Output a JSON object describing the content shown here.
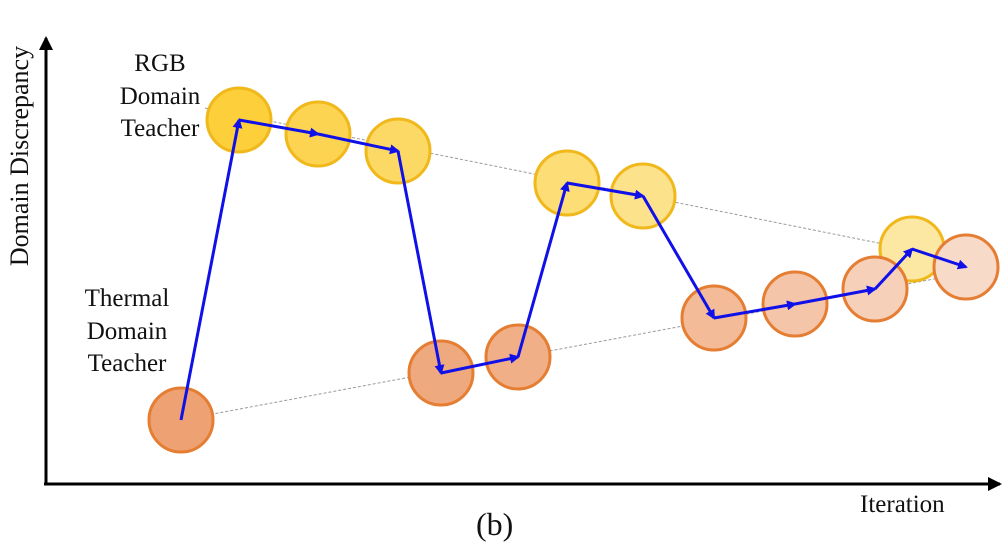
{
  "labels": {
    "y_axis": "Domain Discrepancy",
    "x_axis": "Iteration",
    "caption": "(b)",
    "rgb_teacher": [
      "RGB",
      "Domain",
      "Teacher"
    ],
    "thermal_teacher": [
      "Thermal",
      "Domain",
      "Teacher"
    ]
  },
  "colors": {
    "axis": "#000000",
    "arrow": "#1010e8",
    "trend_line": "#9a9a9a",
    "rgb_stroke": "#f0b81a",
    "thermal_stroke": "#e57d32",
    "rgb_fill_light": "#fdf2cf",
    "rgb_fill_dark": "#fccf3b",
    "thermal_fill_light": "#fbe8de",
    "thermal_fill_dark": "#eea273"
  },
  "diagram": {
    "circles": [
      {
        "id": "rgb-teacher-1",
        "group": "rgb",
        "shade": 1.0
      },
      {
        "id": "rgb-teacher-2",
        "group": "rgb",
        "shade": 0.85
      },
      {
        "id": "rgb-teacher-3",
        "group": "rgb",
        "shade": 0.72
      },
      {
        "id": "rgb-teacher-4",
        "group": "rgb",
        "shade": 0.6
      },
      {
        "id": "rgb-teacher-5",
        "group": "rgb",
        "shade": 0.45
      },
      {
        "id": "rgb-teacher-6",
        "group": "rgb",
        "shade": 0.3
      },
      {
        "id": "thermal-teacher-1",
        "group": "thermal",
        "shade": 1.0
      },
      {
        "id": "thermal-teacher-2",
        "group": "thermal",
        "shade": 0.9
      },
      {
        "id": "thermal-teacher-3",
        "group": "thermal",
        "shade": 0.82
      },
      {
        "id": "thermal-teacher-4",
        "group": "thermal",
        "shade": 0.65
      },
      {
        "id": "thermal-teacher-5",
        "group": "thermal",
        "shade": 0.5
      },
      {
        "id": "thermal-teacher-6",
        "group": "thermal",
        "shade": 0.35
      },
      {
        "id": "thermal-teacher-7",
        "group": "thermal",
        "shade": 0.2
      }
    ],
    "path_order": [
      "thermal-teacher-1",
      "rgb-teacher-1",
      "rgb-teacher-2",
      "rgb-teacher-3",
      "thermal-teacher-2",
      "thermal-teacher-3",
      "rgb-teacher-4",
      "rgb-teacher-5",
      "thermal-teacher-4",
      "thermal-teacher-5",
      "thermal-teacher-6",
      "rgb-teacher-6",
      "thermal-teacher-7"
    ]
  }
}
